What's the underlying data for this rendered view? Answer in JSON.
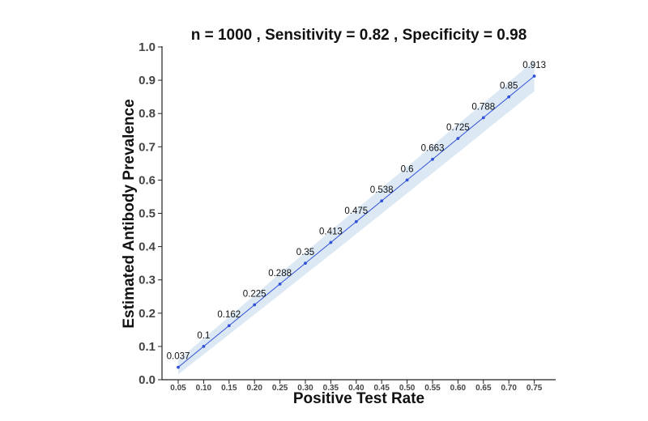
{
  "chart_data": {
    "type": "line",
    "title": "n =  1000 , Sensitivity =  0.82 , Specificity =  0.98",
    "xlabel": "Positive Test Rate",
    "ylabel": "Estimated Antibody Prevalence",
    "ylim": [
      0.0,
      1.0
    ],
    "y_ticks": [
      "0.0",
      "0.1",
      "0.2",
      "0.3",
      "0.4",
      "0.5",
      "0.6",
      "0.7",
      "0.8",
      "0.9",
      "1.0"
    ],
    "x": [
      0.05,
      0.1,
      0.15,
      0.2,
      0.25,
      0.3,
      0.35,
      0.4,
      0.45,
      0.5,
      0.55,
      0.6,
      0.65,
      0.7,
      0.75
    ],
    "x_tick_labels": [
      "0.05",
      "0.10",
      "0.15",
      "0.20",
      "0.25",
      "0.30",
      "0.35",
      "0.40",
      "0.45",
      "0.50",
      "0.55",
      "0.60",
      "0.65",
      "0.70",
      "0.75"
    ],
    "series": [
      {
        "values": [
          0.0375,
          0.1,
          0.1625,
          0.225,
          0.2875,
          0.35,
          0.4125,
          0.475,
          0.5375,
          0.6,
          0.6625,
          0.725,
          0.7875,
          0.85,
          0.9125
        ],
        "data_labels": [
          "0.037",
          "0.1",
          "0.162",
          "0.225",
          "0.288",
          "0.35",
          "0.413",
          "0.475",
          "0.538",
          "0.6",
          "0.663",
          "0.725",
          "0.788",
          "0.85",
          "0.913"
        ],
        "ci_lower": [
          0.016,
          0.076,
          0.136,
          0.196,
          0.256,
          0.317,
          0.377,
          0.438,
          0.499,
          0.56,
          0.621,
          0.682,
          0.744,
          0.805,
          0.867
        ],
        "ci_upper": [
          0.059,
          0.124,
          0.189,
          0.254,
          0.319,
          0.383,
          0.448,
          0.512,
          0.576,
          0.64,
          0.704,
          0.768,
          0.831,
          0.895,
          0.958
        ],
        "color": "#3050d8"
      }
    ],
    "band_color": "#dce9f5",
    "grid": false,
    "legend": "none"
  }
}
